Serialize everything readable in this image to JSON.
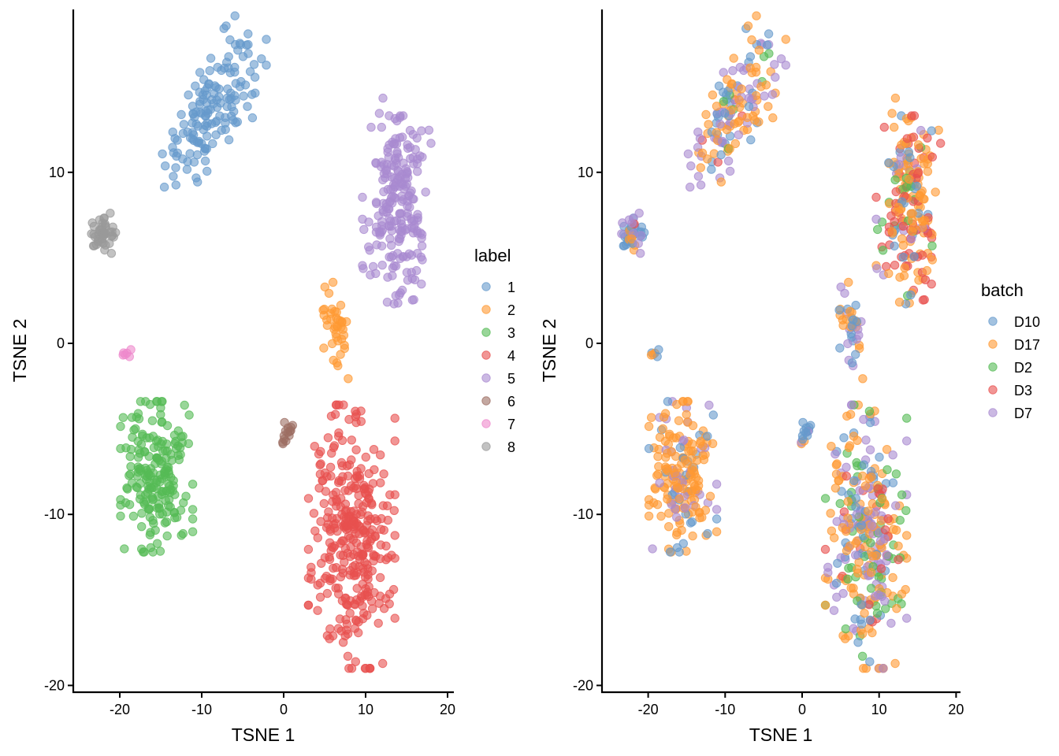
{
  "chart_data": [
    {
      "type": "scatter",
      "panel": "left",
      "xlabel": "TSNE 1",
      "ylabel": "TSNE 2",
      "xlim": [
        -25.8,
        20.5
      ],
      "ylim": [
        -20.3,
        19.6
      ],
      "xticks": [
        -20,
        -10,
        0,
        10,
        20
      ],
      "yticks": [
        -20,
        -10,
        0,
        10
      ],
      "xtick_labels": [
        "-20",
        "-10",
        "0",
        "10",
        "20"
      ],
      "ytick_labels": [
        "-20",
        "-10",
        "0",
        "10"
      ],
      "grid": false,
      "legend": {
        "title": "label",
        "placement": "right",
        "entries": [
          {
            "label": "1",
            "color": "#6699CC"
          },
          {
            "label": "2",
            "color": "#FF9933"
          },
          {
            "label": "3",
            "color": "#55BB55"
          },
          {
            "label": "4",
            "color": "#E8504F"
          },
          {
            "label": "5",
            "color": "#A98AD0"
          },
          {
            "label": "6",
            "color": "#9C6E63"
          },
          {
            "label": "7",
            "color": "#EE88CC"
          },
          {
            "label": "8",
            "color": "#999999"
          }
        ]
      },
      "clusters": [
        {
          "label": "1",
          "n": 150,
          "center": [
            -8.5,
            14.0
          ],
          "spread": [
            2.9,
            1.7
          ],
          "tilt": 0.55
        },
        {
          "label": "2",
          "n": 40,
          "center": [
            6.3,
            1.3
          ],
          "spread": [
            0.9,
            1.1
          ],
          "tilt": -0.6
        },
        {
          "label": "3",
          "n": 200,
          "center": [
            -15.5,
            -7.8
          ],
          "spread": [
            2.0,
            2.0
          ],
          "tilt": 0.0
        },
        {
          "label": "4",
          "n": 330,
          "center": [
            8.3,
            -11.3
          ],
          "spread": [
            2.4,
            3.5
          ],
          "tilt": 0.0
        },
        {
          "label": "5",
          "n": 220,
          "center": [
            13.8,
            8.5
          ],
          "spread": [
            1.9,
            2.8
          ],
          "tilt": 0.1
        },
        {
          "label": "6",
          "n": 14,
          "center": [
            0.4,
            -5.4
          ],
          "spread": [
            0.5,
            0.4
          ],
          "tilt": 0.3
        },
        {
          "label": "7",
          "n": 6,
          "center": [
            -19.3,
            -0.7
          ],
          "spread": [
            0.3,
            0.15
          ],
          "tilt": 0.0
        },
        {
          "label": "8",
          "n": 45,
          "center": [
            -21.8,
            6.4
          ],
          "spread": [
            0.75,
            0.55
          ],
          "tilt": 0.0
        }
      ]
    },
    {
      "type": "scatter",
      "panel": "right",
      "xlabel": "TSNE 1",
      "ylabel": "TSNE 2",
      "xlim": [
        -25.8,
        20.5
      ],
      "ylim": [
        -20.3,
        19.6
      ],
      "xticks": [
        -20,
        -10,
        0,
        10,
        20
      ],
      "yticks": [
        -20,
        -10,
        0,
        10
      ],
      "xtick_labels": [
        "-20",
        "-10",
        "0",
        "10",
        "20"
      ],
      "ytick_labels": [
        "-20",
        "-10",
        "0",
        "10"
      ],
      "grid": false,
      "legend": {
        "title": "batch",
        "placement": "right",
        "entries": [
          {
            "label": "D10",
            "color": "#6699CC"
          },
          {
            "label": "D17",
            "color": "#FF9933"
          },
          {
            "label": "D2",
            "color": "#55BB55"
          },
          {
            "label": "D3",
            "color": "#E8504F"
          },
          {
            "label": "D7",
            "color": "#A98AD0"
          }
        ]
      },
      "batch_mix_by_label": {
        "1": {
          "D10": 0.2,
          "D17": 0.45,
          "D2": 0.04,
          "D3": 0.02,
          "D7": 0.29
        },
        "2": {
          "D10": 0.35,
          "D17": 0.45,
          "D2": 0.0,
          "D3": 0.0,
          "D7": 0.2
        },
        "3": {
          "D10": 0.1,
          "D17": 0.7,
          "D2": 0.0,
          "D3": 0.0,
          "D7": 0.2
        },
        "4": {
          "D10": 0.16,
          "D17": 0.4,
          "D2": 0.14,
          "D3": 0.06,
          "D7": 0.24
        },
        "5": {
          "D10": 0.14,
          "D17": 0.38,
          "D2": 0.1,
          "D3": 0.3,
          "D7": 0.08
        },
        "6": {
          "D10": 0.7,
          "D17": 0.15,
          "D2": 0.0,
          "D3": 0.0,
          "D7": 0.15
        },
        "7": {
          "D10": 0.4,
          "D17": 0.6,
          "D2": 0.0,
          "D3": 0.0,
          "D7": 0.0
        },
        "8": {
          "D10": 0.45,
          "D17": 0.15,
          "D2": 0.0,
          "D3": 0.05,
          "D7": 0.35
        }
      }
    }
  ]
}
